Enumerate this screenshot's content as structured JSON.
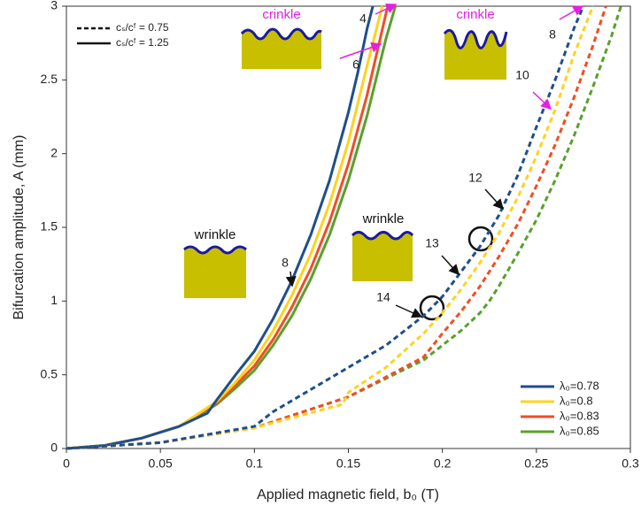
{
  "chart_data": {
    "type": "line",
    "x_label": "Applied magnetic field, b₀ (T)",
    "y_label": "Bifurcation amplitude, A (mm)",
    "xlim": [
      0,
      0.3
    ],
    "ylim": [
      0,
      3
    ],
    "xticks": [
      0,
      0.05,
      0.1,
      0.15,
      0.2,
      0.25,
      0.3
    ],
    "yticks": [
      0,
      0.5,
      1,
      1.5,
      2,
      2.5,
      3
    ],
    "grid": false,
    "color_legend": [
      {
        "name": "λ₀=0.78",
        "color": "#1f4e8c"
      },
      {
        "name": "λ₀=0.8",
        "color": "#ffd21f"
      },
      {
        "name": "λ₀=0.83",
        "color": "#f04e23"
      },
      {
        "name": "λ₀=0.85",
        "color": "#5aa02c"
      }
    ],
    "style_legend": [
      {
        "name": "cₛ/cᶠ = 0.75",
        "dash": true
      },
      {
        "name": "cₛ/cᶠ = 1.25",
        "dash": false
      }
    ],
    "series": [
      {
        "color": "#5aa02c",
        "dash": false,
        "x": [
          0,
          0.02,
          0.04,
          0.06,
          0.08,
          0.09,
          0.1,
          0.11,
          0.12,
          0.13,
          0.14,
          0.15,
          0.16,
          0.17,
          0.175
        ],
        "values": [
          0,
          0.02,
          0.07,
          0.15,
          0.3,
          0.41,
          0.53,
          0.7,
          0.9,
          1.15,
          1.45,
          1.82,
          2.26,
          2.78,
          3
        ]
      },
      {
        "color": "#f04e23",
        "dash": false,
        "x": [
          0,
          0.02,
          0.04,
          0.06,
          0.08,
          0.09,
          0.1,
          0.11,
          0.12,
          0.13,
          0.14,
          0.15,
          0.16,
          0.17,
          0.171
        ],
        "values": [
          0,
          0.02,
          0.07,
          0.15,
          0.31,
          0.43,
          0.56,
          0.74,
          0.96,
          1.22,
          1.54,
          1.93,
          2.4,
          2.95,
          3
        ]
      },
      {
        "color": "#ffd21f",
        "dash": false,
        "x": [
          0,
          0.02,
          0.04,
          0.06,
          0.08,
          0.09,
          0.1,
          0.11,
          0.12,
          0.13,
          0.14,
          0.15,
          0.16,
          0.168
        ],
        "values": [
          0,
          0.02,
          0.07,
          0.15,
          0.32,
          0.45,
          0.6,
          0.8,
          1.04,
          1.32,
          1.66,
          2.08,
          2.6,
          3
        ]
      },
      {
        "color": "#1f4e8c",
        "dash": false,
        "x": [
          0,
          0.02,
          0.04,
          0.06,
          0.075,
          0.08,
          0.09,
          0.1,
          0.11,
          0.12,
          0.13,
          0.14,
          0.15,
          0.155,
          0.16,
          0.163
        ],
        "values": [
          0,
          0.02,
          0.07,
          0.15,
          0.24,
          0.33,
          0.5,
          0.66,
          0.88,
          1.14,
          1.45,
          1.82,
          2.28,
          2.55,
          2.85,
          3
        ]
      },
      {
        "color": "#5aa02c",
        "dash": true,
        "x": [
          0,
          0.05,
          0.1,
          0.15,
          0.19,
          0.2,
          0.21,
          0.22,
          0.225,
          0.23,
          0.24,
          0.25,
          0.26,
          0.27,
          0.28,
          0.29,
          0.295
        ],
        "values": [
          0,
          0.04,
          0.14,
          0.35,
          0.6,
          0.7,
          0.8,
          0.92,
          1.0,
          1.1,
          1.32,
          1.55,
          1.82,
          2.12,
          2.45,
          2.8,
          3
        ]
      },
      {
        "color": "#f04e23",
        "dash": true,
        "x": [
          0,
          0.05,
          0.1,
          0.15,
          0.19,
          0.195,
          0.2,
          0.21,
          0.22,
          0.23,
          0.24,
          0.25,
          0.26,
          0.27,
          0.28,
          0.287
        ],
        "values": [
          0,
          0.04,
          0.14,
          0.35,
          0.62,
          0.7,
          0.78,
          0.93,
          1.1,
          1.3,
          1.52,
          1.78,
          2.06,
          2.38,
          2.73,
          3
        ]
      },
      {
        "color": "#ffd21f",
        "dash": true,
        "x": [
          0,
          0.05,
          0.1,
          0.147,
          0.15,
          0.17,
          0.19,
          0.2,
          0.21,
          0.22,
          0.23,
          0.24,
          0.25,
          0.26,
          0.27,
          0.28
        ],
        "values": [
          0,
          0.04,
          0.14,
          0.3,
          0.38,
          0.55,
          0.78,
          0.92,
          1.08,
          1.26,
          1.46,
          1.7,
          1.98,
          2.3,
          2.67,
          3
        ]
      },
      {
        "color": "#1f4e8c",
        "dash": true,
        "x": [
          0,
          0.05,
          0.1,
          0.11,
          0.13,
          0.15,
          0.17,
          0.19,
          0.2,
          0.21,
          0.22,
          0.23,
          0.24,
          0.25,
          0.26,
          0.27,
          0.275
        ],
        "values": [
          0,
          0.04,
          0.15,
          0.25,
          0.4,
          0.55,
          0.7,
          0.9,
          1.03,
          1.2,
          1.37,
          1.58,
          1.85,
          2.18,
          2.5,
          2.85,
          3
        ]
      }
    ],
    "annotations": [
      "4",
      "6",
      "8",
      "8",
      "10",
      "12",
      "13",
      "14"
    ],
    "insets": [
      "crinkle",
      "crinkle",
      "wrinkle",
      "wrinkle"
    ]
  }
}
